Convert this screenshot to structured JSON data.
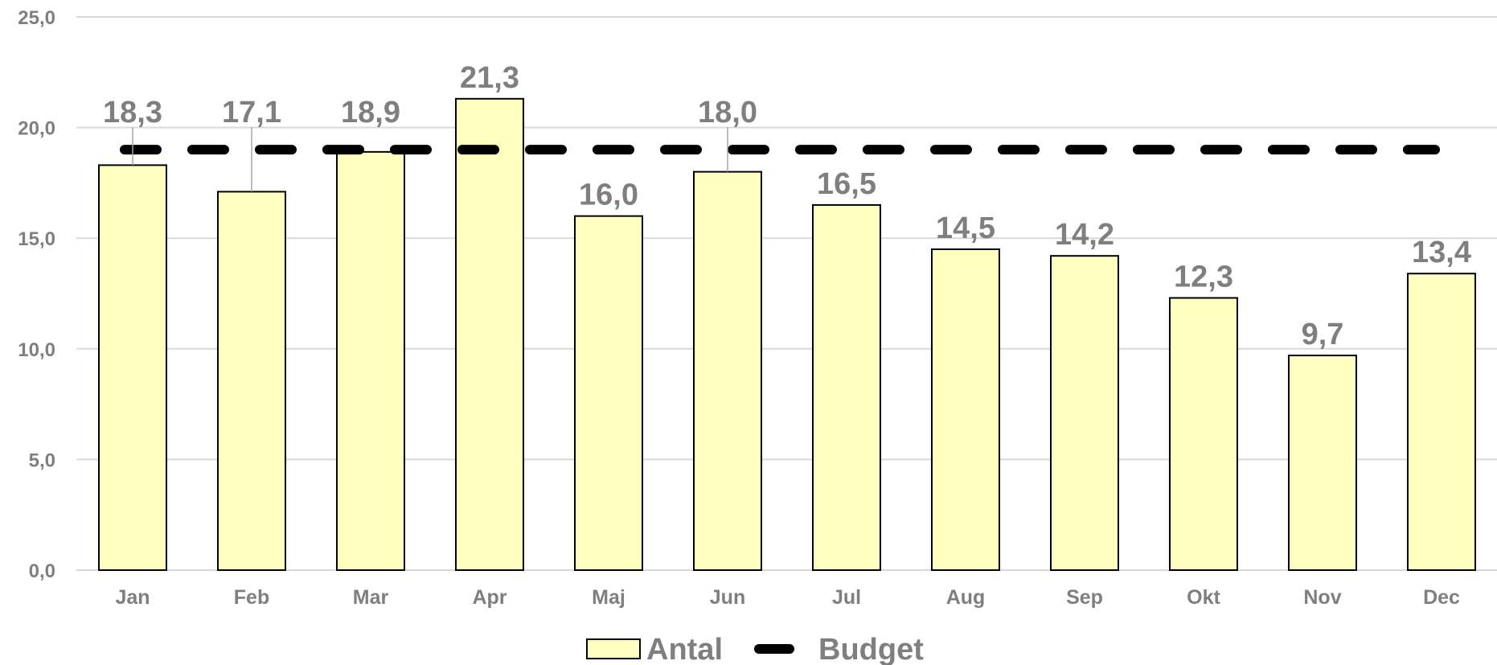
{
  "chart_data": {
    "type": "bar",
    "categories": [
      "Jan",
      "Feb",
      "Mar",
      "Apr",
      "Maj",
      "Jun",
      "Jul",
      "Aug",
      "Sep",
      "Okt",
      "Nov",
      "Dec"
    ],
    "series": [
      {
        "name": "Antal",
        "type": "bar",
        "values": [
          18.3,
          17.1,
          18.9,
          21.3,
          16.0,
          18.0,
          16.5,
          14.5,
          14.2,
          12.3,
          9.7,
          13.4
        ]
      },
      {
        "name": "Budget",
        "type": "line",
        "style": "dashed",
        "values": [
          19.0,
          19.0,
          19.0,
          19.0,
          19.0,
          19.0,
          19.0,
          19.0,
          19.0,
          19.0,
          19.0,
          19.0
        ]
      }
    ],
    "data_labels": [
      "18,3",
      "17,1",
      "18,9",
      "21,3",
      "16,0",
      "18,0",
      "16,5",
      "14,5",
      "14,2",
      "12,3",
      "9,7",
      "13,4"
    ],
    "y_ticks": [
      "0,0",
      "5,0",
      "10,0",
      "15,0",
      "20,0",
      "25,0"
    ],
    "ylim": [
      0,
      25
    ],
    "title": "",
    "xlabel": "",
    "ylabel": "",
    "grid": true,
    "legend": {
      "placement": "bottom",
      "items": [
        "Antal",
        "Budget"
      ]
    },
    "colors": {
      "bar_fill": "#ffffc0",
      "bar_stroke": "#000000",
      "budget_line": "#000000",
      "gridline": "#d9d9d9",
      "text": "#7f7f7f"
    }
  }
}
